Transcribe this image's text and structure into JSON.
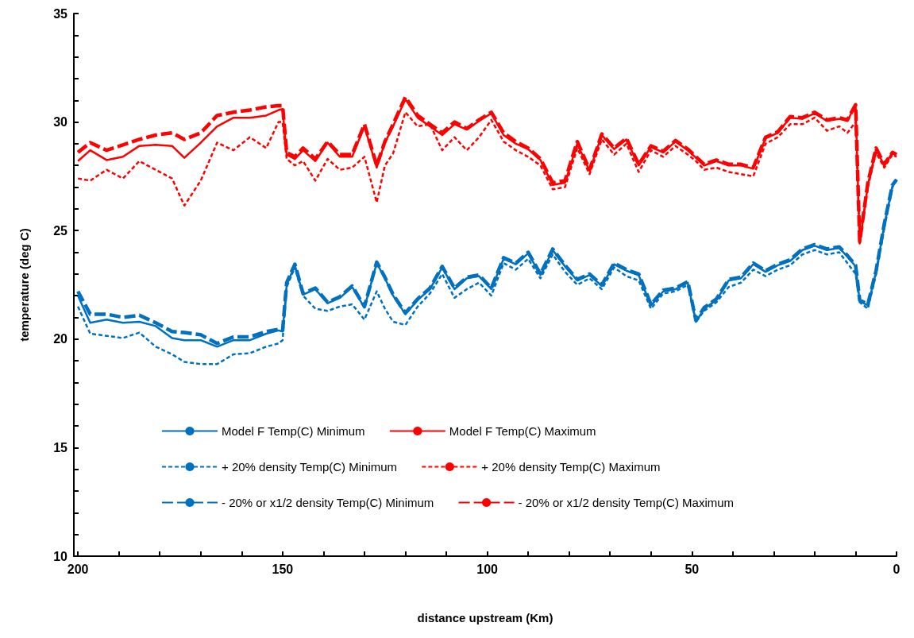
{
  "chart_data": {
    "type": "line",
    "xlabel": "distance upstream (Km)",
    "ylabel": "temperature (deg C)",
    "xlim": [
      201,
      0
    ],
    "ylim": [
      10,
      35
    ],
    "xticks": [
      0,
      {
        "value": 10,
        "label": null
      },
      {
        "value": 20,
        "label": null
      },
      {
        "value": 30,
        "label": null
      },
      {
        "value": 40,
        "label": null
      },
      50,
      {
        "value": 60,
        "label": null
      },
      {
        "value": 70,
        "label": null
      },
      {
        "value": 80,
        "label": null
      },
      {
        "value": 90,
        "label": null
      },
      100,
      {
        "value": 110,
        "label": null
      },
      {
        "value": 120,
        "label": null
      },
      {
        "value": 130,
        "label": null
      },
      {
        "value": 140,
        "label": null
      },
      150,
      {
        "value": 160,
        "label": null
      },
      {
        "value": 170,
        "label": null
      },
      {
        "value": 180,
        "label": null
      },
      {
        "value": 190,
        "label": null
      },
      200
    ],
    "yticks": [
      10,
      {
        "value": 11,
        "label": null
      },
      {
        "value": 12,
        "label": null
      },
      {
        "value": 13,
        "label": null
      },
      {
        "value": 14,
        "label": null
      },
      15,
      {
        "value": 16,
        "label": null
      },
      {
        "value": 17,
        "label": null
      },
      {
        "value": 18,
        "label": null
      },
      {
        "value": 19,
        "label": null
      },
      20,
      {
        "value": 21,
        "label": null
      },
      {
        "value": 22,
        "label": null
      },
      {
        "value": 23,
        "label": null
      },
      {
        "value": 24,
        "label": null
      },
      25,
      {
        "value": 26,
        "label": null
      },
      {
        "value": 27,
        "label": null
      },
      {
        "value": 28,
        "label": null
      },
      {
        "value": 29,
        "label": null
      },
      30,
      {
        "value": 31,
        "label": null
      },
      {
        "value": 32,
        "label": null
      },
      {
        "value": 33,
        "label": null
      },
      {
        "value": 34,
        "label": null
      },
      35
    ],
    "grid": false,
    "legend": "bottom",
    "marker": "none",
    "x": [
      200,
      197,
      193,
      189,
      185,
      181,
      177,
      174,
      170,
      166,
      162,
      158,
      154,
      151,
      150,
      149,
      147,
      145,
      142,
      139,
      136,
      133,
      130,
      127,
      125,
      123,
      120,
      117,
      114,
      111,
      108,
      105,
      102,
      99,
      96,
      93,
      90,
      87,
      84,
      81,
      78,
      75,
      72,
      69,
      66,
      63,
      60,
      57,
      54,
      51,
      49,
      47,
      44,
      41,
      38,
      35,
      32,
      29,
      26,
      23,
      20,
      17,
      14,
      12,
      10,
      9,
      7,
      5,
      3,
      1,
      0
    ],
    "series": [
      {
        "name": "Model F Temp(C) Minimum",
        "color": "#0070c0",
        "line_style": "solid",
        "values": [
          22.0,
          20.75,
          20.9,
          20.75,
          20.8,
          20.6,
          20.05,
          19.95,
          19.95,
          19.65,
          19.95,
          19.95,
          20.25,
          20.4,
          20.35,
          22.5,
          23.4,
          22.05,
          22.3,
          21.65,
          21.9,
          22.4,
          21.45,
          23.5,
          22.8,
          22.0,
          21.15,
          21.8,
          22.3,
          23.3,
          22.3,
          22.8,
          22.9,
          22.3,
          23.7,
          23.45,
          23.95,
          22.95,
          24.1,
          23.35,
          22.7,
          22.95,
          22.45,
          23.45,
          23.15,
          22.95,
          21.55,
          22.2,
          22.3,
          22.6,
          20.8,
          21.4,
          21.8,
          22.7,
          22.8,
          23.45,
          23.1,
          23.4,
          23.6,
          24.1,
          24.3,
          24.1,
          24.2,
          23.8,
          23.35,
          21.75,
          21.55,
          23.1,
          25.25,
          27.05,
          27.35
        ]
      },
      {
        "name": "Model F Temp(C) Maximum",
        "color": "#ff0000",
        "line_style": "solid",
        "values": [
          28.2,
          28.7,
          28.25,
          28.4,
          28.9,
          28.95,
          28.9,
          28.35,
          29.05,
          29.8,
          30.2,
          30.2,
          30.3,
          30.55,
          30.6,
          28.5,
          28.3,
          28.7,
          28.2,
          29.05,
          28.4,
          28.4,
          29.8,
          27.9,
          29.05,
          29.8,
          31.05,
          30.2,
          29.8,
          29.4,
          29.9,
          29.65,
          30.05,
          30.4,
          29.4,
          29.0,
          28.75,
          28.25,
          27.1,
          27.2,
          29.0,
          27.75,
          29.4,
          28.75,
          29.2,
          28.0,
          28.85,
          28.6,
          29.1,
          28.7,
          28.35,
          28.0,
          28.2,
          28.0,
          28.0,
          27.85,
          29.25,
          29.5,
          30.2,
          30.15,
          30.4,
          30.05,
          30.15,
          30.05,
          30.8,
          24.4,
          27.1,
          28.75,
          28.0,
          28.6,
          28.5
        ]
      },
      {
        "name": "+ 20% density Temp(C) Minimum",
        "color": "#0070c0",
        "line_style": "dashed",
        "values": [
          21.5,
          20.25,
          20.15,
          20.05,
          20.3,
          19.65,
          19.3,
          18.95,
          18.85,
          18.85,
          19.3,
          19.35,
          19.65,
          19.8,
          19.95,
          22.4,
          23.3,
          22.0,
          21.4,
          21.3,
          21.5,
          21.6,
          20.9,
          22.2,
          21.4,
          20.8,
          20.65,
          21.5,
          22.1,
          23.0,
          21.9,
          22.3,
          22.6,
          22.0,
          23.5,
          23.2,
          23.7,
          22.8,
          23.9,
          23.1,
          22.5,
          22.8,
          22.3,
          23.3,
          22.9,
          22.7,
          21.4,
          22.1,
          22.2,
          22.5,
          20.8,
          21.3,
          21.7,
          22.4,
          22.6,
          23.2,
          22.9,
          23.2,
          23.4,
          23.9,
          24.1,
          23.9,
          24.0,
          23.5,
          23.0,
          21.7,
          21.4,
          23.0,
          25.1,
          27.0,
          27.3
        ]
      },
      {
        "name": "+ 20% density Temp(C) Maximum",
        "color": "#ff0000",
        "line_style": "dashed",
        "values": [
          27.4,
          27.3,
          27.8,
          27.4,
          28.2,
          27.8,
          27.4,
          26.15,
          27.3,
          29.05,
          28.7,
          29.3,
          28.8,
          30.0,
          30.0,
          28.3,
          28.0,
          28.2,
          27.3,
          28.3,
          27.8,
          27.9,
          28.4,
          26.3,
          28.0,
          28.55,
          30.45,
          29.8,
          29.9,
          28.7,
          29.3,
          28.7,
          29.3,
          30.1,
          29.1,
          28.7,
          28.4,
          28.0,
          26.9,
          27.0,
          28.8,
          27.6,
          29.2,
          28.5,
          29.0,
          27.7,
          28.7,
          28.4,
          28.9,
          28.5,
          28.2,
          27.8,
          27.9,
          27.7,
          27.6,
          27.5,
          29.0,
          29.3,
          29.9,
          29.9,
          30.2,
          29.6,
          29.8,
          29.5,
          30.0,
          24.6,
          27.0,
          28.6,
          27.9,
          28.5,
          28.4
        ]
      },
      {
        "name": "- 20% or x1/2 density Temp(C) Minimum",
        "color": "#0070c0",
        "line_style": "dashed",
        "values": [
          22.2,
          21.15,
          21.15,
          21.0,
          21.1,
          20.75,
          20.35,
          20.3,
          20.2,
          19.8,
          20.1,
          20.1,
          20.35,
          20.45,
          20.4,
          22.6,
          23.45,
          22.1,
          22.35,
          21.7,
          21.95,
          22.45,
          21.5,
          23.55,
          22.85,
          22.05,
          21.2,
          21.85,
          22.35,
          23.35,
          22.35,
          22.85,
          22.95,
          22.35,
          23.75,
          23.5,
          24.0,
          23.0,
          24.15,
          23.4,
          22.75,
          23.0,
          22.5,
          23.5,
          23.2,
          23.0,
          21.6,
          22.25,
          22.35,
          22.65,
          20.85,
          21.45,
          21.85,
          22.75,
          22.85,
          23.5,
          23.15,
          23.45,
          23.65,
          24.15,
          24.35,
          24.15,
          24.25,
          23.85,
          23.4,
          21.8,
          21.6,
          23.15,
          25.3,
          27.1,
          27.35
        ]
      },
      {
        "name": "- 20% or x1/2 density Temp(C) Maximum",
        "color": "#ff0000",
        "line_style": "dashed",
        "values": [
          28.6,
          29.05,
          28.7,
          28.95,
          29.2,
          29.4,
          29.5,
          29.2,
          29.5,
          30.3,
          30.45,
          30.55,
          30.7,
          30.75,
          30.75,
          28.6,
          28.4,
          28.8,
          28.3,
          29.1,
          28.5,
          28.5,
          29.9,
          28.0,
          29.1,
          29.9,
          31.15,
          30.3,
          29.9,
          29.5,
          30.0,
          29.7,
          30.1,
          30.45,
          29.5,
          29.1,
          28.8,
          28.3,
          27.2,
          27.3,
          29.1,
          27.8,
          29.45,
          28.8,
          29.25,
          28.05,
          28.9,
          28.65,
          29.15,
          28.75,
          28.4,
          28.05,
          28.25,
          28.05,
          28.05,
          27.9,
          29.3,
          29.55,
          30.25,
          30.2,
          30.45,
          30.1,
          30.2,
          30.1,
          30.8,
          24.5,
          27.2,
          28.8,
          28.05,
          28.6,
          28.5
        ]
      }
    ]
  }
}
